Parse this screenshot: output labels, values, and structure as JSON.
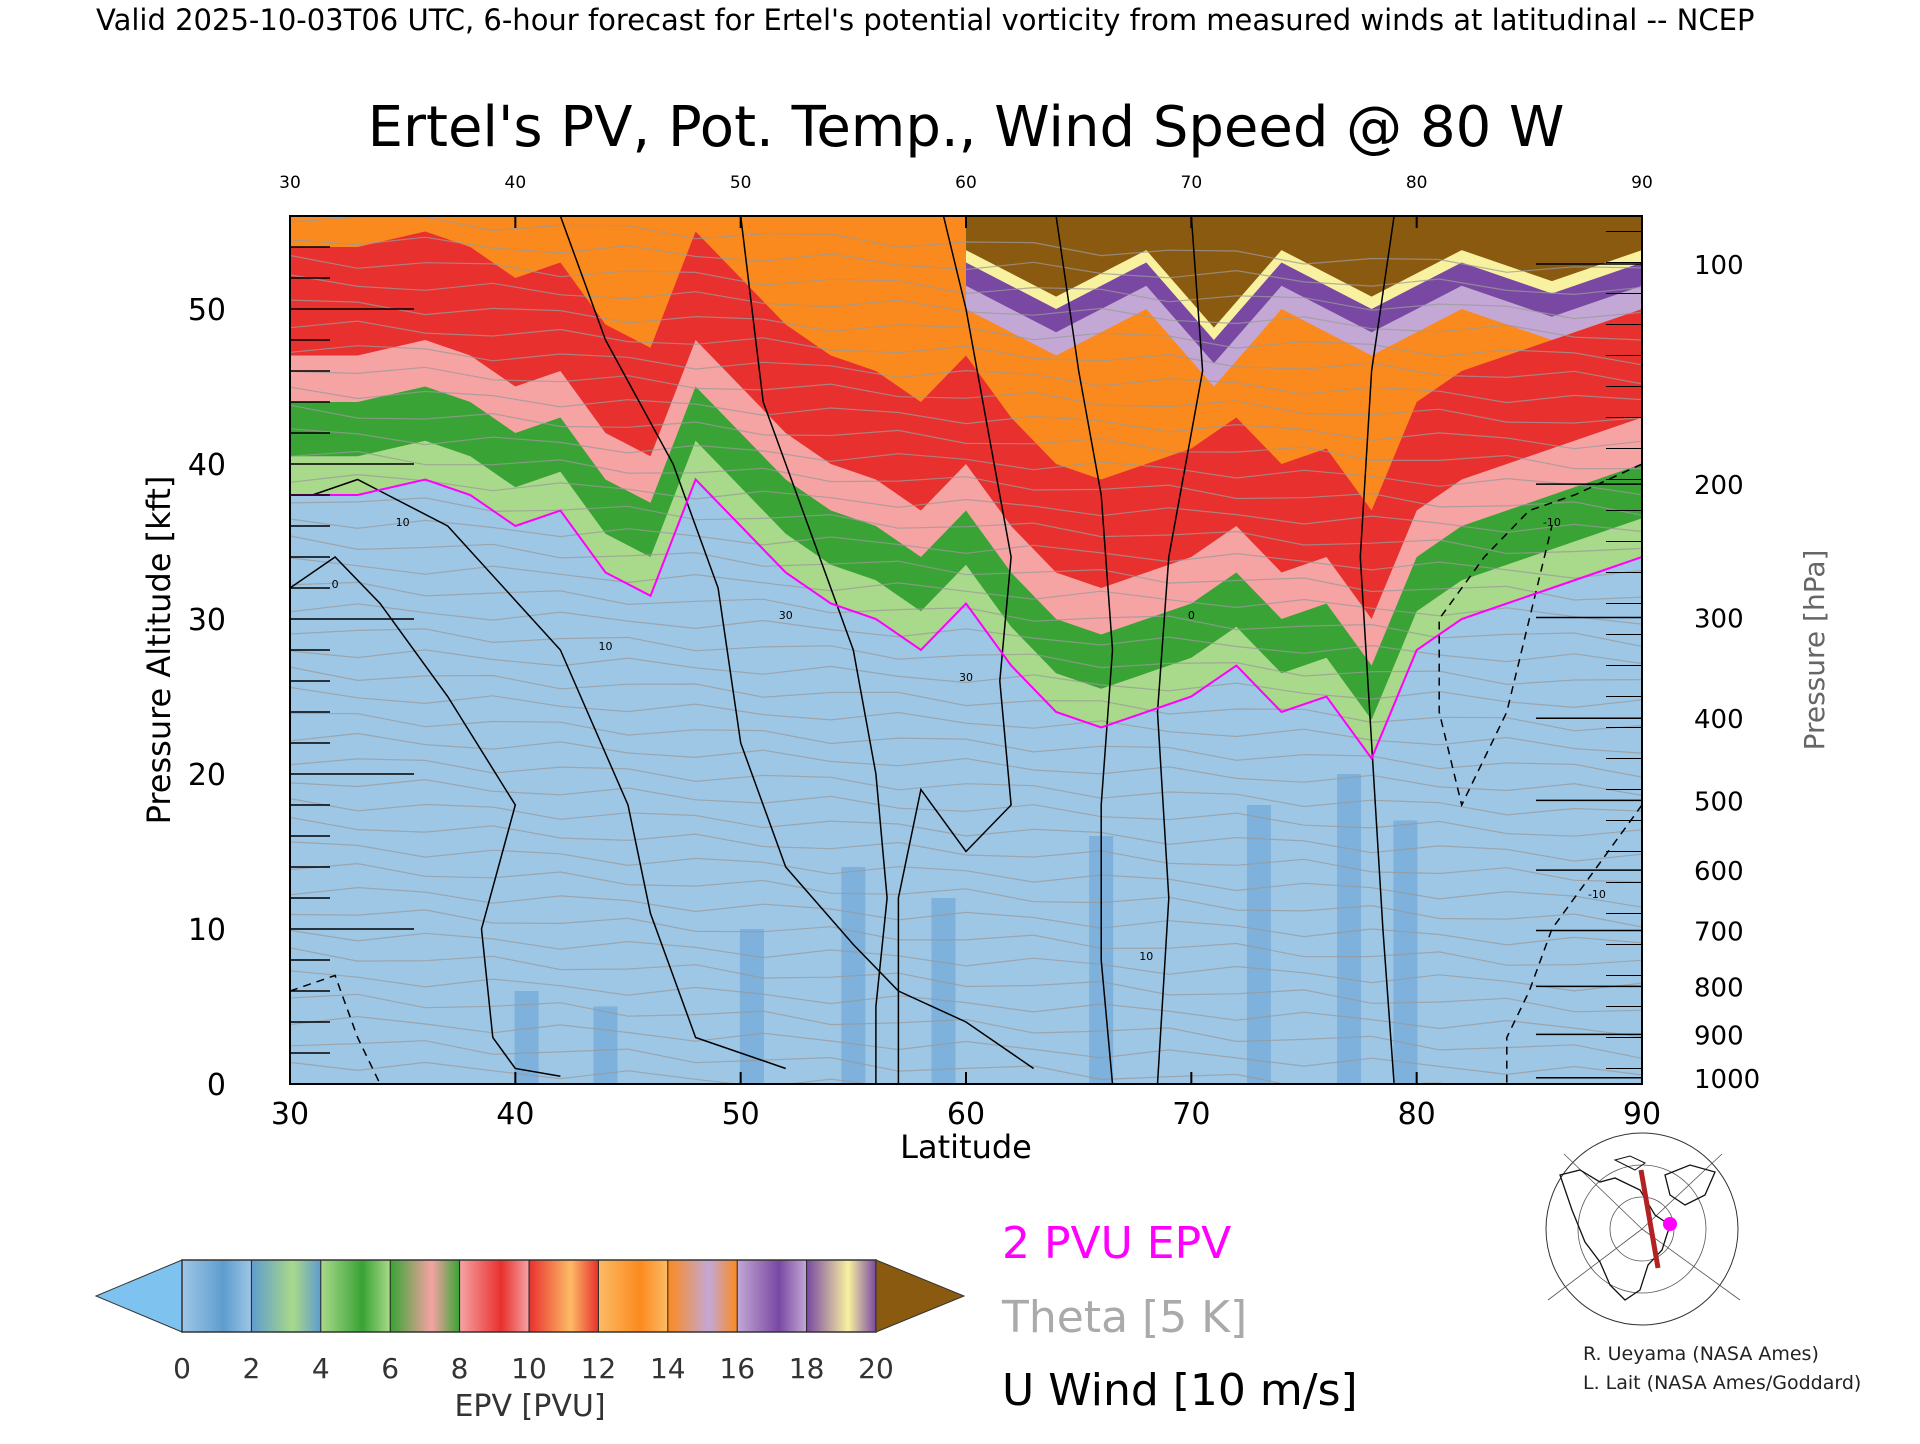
{
  "header": {
    "valid_line": "Valid 2025-10-03T06 UTC, 6-hour forecast for Ertel's potential vorticity from measured winds at latitudinal -- NCEP"
  },
  "chart_data": {
    "type": "heatmap",
    "title": "Ertel's PV, Pot. Temp., Wind Speed @ 80 W",
    "xlabel": "Latitude",
    "ylabel_left": "Pressure Altitude [kft]",
    "ylabel_right": "Pressure [hPa]",
    "xlim": [
      30,
      90
    ],
    "ylim_kft": [
      0,
      56
    ],
    "x_ticks": [
      30,
      40,
      50,
      60,
      70,
      80,
      90
    ],
    "y_ticks_kft": [
      0,
      10,
      20,
      30,
      40,
      50
    ],
    "pressure_ticks": [
      {
        "hPa": "100",
        "kft": 52.9
      },
      {
        "hPa": "200",
        "kft": 38.7
      },
      {
        "hPa": "300",
        "kft": 30.1
      },
      {
        "hPa": "400",
        "kft": 23.6
      },
      {
        "hPa": "500",
        "kft": 18.3
      },
      {
        "hPa": "600",
        "kft": 13.8
      },
      {
        "hPa": "700",
        "kft": 9.9
      },
      {
        "hPa": "800",
        "kft": 6.3
      },
      {
        "hPa": "900",
        "kft": 3.2
      },
      {
        "hPa": "1000",
        "kft": 0.4
      }
    ],
    "pv_top_of_blue_kft": [
      [
        30,
        38
      ],
      [
        33,
        38
      ],
      [
        36,
        39
      ],
      [
        38,
        38
      ],
      [
        40,
        36
      ],
      [
        42,
        37
      ],
      [
        44,
        33
      ],
      [
        46,
        31.5
      ],
      [
        48,
        39
      ],
      [
        50,
        36
      ],
      [
        52,
        33
      ],
      [
        54,
        31
      ],
      [
        56,
        30
      ],
      [
        58,
        28
      ],
      [
        60,
        31
      ],
      [
        62,
        27
      ],
      [
        64,
        24
      ],
      [
        66,
        23
      ],
      [
        68,
        24
      ],
      [
        70,
        25
      ],
      [
        72,
        27
      ],
      [
        74,
        24
      ],
      [
        76,
        25
      ],
      [
        78,
        21
      ],
      [
        80,
        28
      ],
      [
        82,
        30
      ],
      [
        84,
        31
      ],
      [
        86,
        32
      ],
      [
        88,
        33
      ],
      [
        90,
        34
      ]
    ],
    "pv_band_thickness_kft": {
      "light_green": 2.5,
      "green": 3.5,
      "pink": 3,
      "red": 7,
      "orange": 6
    },
    "stratosphere_violet_cap_lat": [
      60,
      90
    ],
    "wind_contour_labels": [
      "0",
      "10",
      "10",
      "30",
      "30",
      "10",
      "0",
      "-10",
      "-10"
    ],
    "colorbar": {
      "label": "EPV [PVU]",
      "ticks": [
        "0",
        "2",
        "4",
        "6",
        "8",
        "10",
        "12",
        "14",
        "16",
        "18",
        "20"
      ],
      "colors": [
        "#9ec7e6",
        "#5e9ccf",
        "#a9d98a",
        "#39a335",
        "#f6a3a3",
        "#e8302e",
        "#fdbb66",
        "#fb8a1e",
        "#c3a8d6",
        "#7948a2",
        "#f8f1a0"
      ],
      "under_color": "#7ec3f0",
      "over_color": "#8b5a11"
    },
    "legend": {
      "pv_line": "2 PVU EPV",
      "theta": "Theta [5 K]",
      "wind": "U Wind [10 m/s]"
    }
  },
  "inset_map": {
    "alt": "locator map"
  },
  "credits": {
    "line1": "R. Ueyama (NASA Ames)",
    "line2": "L. Lait (NASA Ames/Goddard)"
  },
  "colors": {
    "pv_contour": "#ff00ff",
    "theta": "#999999",
    "wind": "#000000",
    "cross_section_line": "#b22222"
  }
}
